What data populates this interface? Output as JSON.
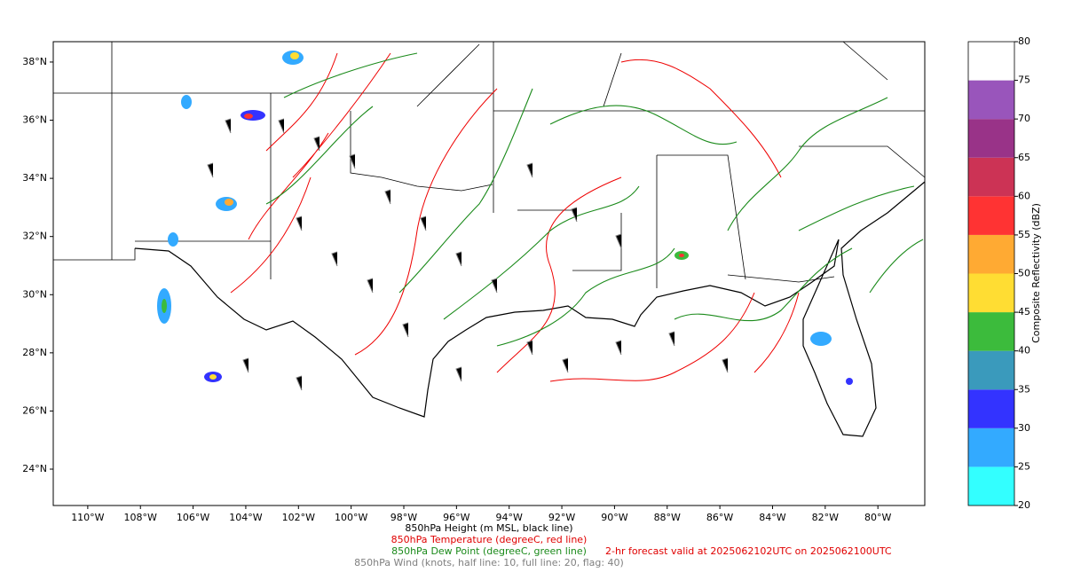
{
  "map": {
    "lonlim": [
      -111.31,
      -78.22
    ],
    "latlim": [
      22.75,
      38.7
    ],
    "lon_ticks": [
      {
        "value": -110,
        "label": "110°W"
      },
      {
        "value": -108,
        "label": "108°W"
      },
      {
        "value": -106,
        "label": "106°W"
      },
      {
        "value": -104,
        "label": "104°W"
      },
      {
        "value": -102,
        "label": "102°W"
      },
      {
        "value": -100,
        "label": "100°W"
      },
      {
        "value": -98,
        "label": "98°W"
      },
      {
        "value": -96,
        "label": "96°W"
      },
      {
        "value": -94,
        "label": "94°W"
      },
      {
        "value": -92,
        "label": "92°W"
      },
      {
        "value": -90,
        "label": "90°W"
      },
      {
        "value": -88,
        "label": "88°W"
      },
      {
        "value": -86,
        "label": "86°W"
      },
      {
        "value": -84,
        "label": "84°W"
      },
      {
        "value": -82,
        "label": "82°W"
      },
      {
        "value": -80,
        "label": "80°W"
      }
    ],
    "lat_ticks": [
      {
        "value": 38,
        "label": "38°N"
      },
      {
        "value": 36,
        "label": "36°N"
      },
      {
        "value": 34,
        "label": "34°N"
      },
      {
        "value": 32,
        "label": "32°N"
      },
      {
        "value": 30,
        "label": "30°N"
      },
      {
        "value": 28,
        "label": "28°N"
      },
      {
        "value": 26,
        "label": "26°N"
      },
      {
        "value": 24,
        "label": "24°N"
      }
    ]
  },
  "colorbar": {
    "label": "Composite Reflectivity (dBZ)",
    "ticks": [
      20,
      25,
      30,
      35,
      40,
      45,
      50,
      55,
      60,
      65,
      70,
      75,
      80
    ],
    "colors": [
      "#33ffff",
      "#33aaff",
      "#3333ff",
      "#3a9abc",
      "#3cbb3c",
      "#ffdd33",
      "#ffaa33",
      "#ff3333",
      "#cc3355",
      "#993388",
      "#9955bb",
      "#ffffff"
    ]
  },
  "captions": [
    {
      "text": "850hPa Height (m MSL, black line)",
      "color": "#000000"
    },
    {
      "text": "850hPa Temperature (degreeC, red line)",
      "color": "#e00000"
    },
    {
      "text": "850hPa Dew Point (degreeC, green line)",
      "color": "#1a8a1a"
    },
    {
      "text": "850hPa Wind (knots, half line: 10, full line: 20, flag: 40)",
      "color": "#808080"
    }
  ],
  "forecast_note": {
    "text": "2-hr forecast valid at 2025062102UTC on 2025062100UTC",
    "color": "#e00000"
  }
}
